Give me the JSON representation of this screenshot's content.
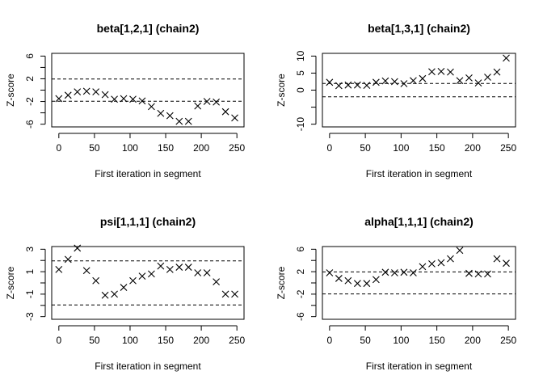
{
  "chart_data": [
    {
      "type": "scatter",
      "title": "beta[1,2,1] (chain2)",
      "xlabel": "First iteration in segment",
      "ylabel": "Z-score",
      "xlim": [
        0,
        250
      ],
      "ylim": [
        -6,
        6
      ],
      "xticks": [
        0,
        50,
        100,
        150,
        200,
        250
      ],
      "yticks": [
        -6,
        -2,
        2,
        6
      ],
      "yminor": [
        -4,
        0,
        4
      ],
      "ref_lines": [
        -1.96,
        1.96
      ],
      "x": [
        0,
        13,
        26,
        39,
        52,
        65,
        78,
        91,
        104,
        117,
        130,
        143,
        156,
        169,
        182,
        195,
        208,
        221,
        234,
        247
      ],
      "y": [
        -1.5,
        -0.9,
        -0.3,
        -0.2,
        -0.3,
        -0.8,
        -1.6,
        -1.5,
        -1.6,
        -1.9,
        -2.9,
        -4.1,
        -4.5,
        -5.5,
        -5.5,
        -2.8,
        -2.0,
        -2.1,
        -3.8,
        -4.9
      ]
    },
    {
      "type": "scatter",
      "title": "beta[1,3,1] (chain2)",
      "xlabel": "First iteration in segment",
      "ylabel": "Z-score",
      "xlim": [
        0,
        250
      ],
      "ylim": [
        -10,
        10
      ],
      "xticks": [
        0,
        50,
        100,
        150,
        200,
        250
      ],
      "yticks": [
        -10,
        -5,
        0,
        5,
        10
      ],
      "yticklabels": [
        "-10",
        "",
        "0",
        "5",
        "10"
      ],
      "ref_lines": [
        -1.96,
        1.96
      ],
      "x": [
        0,
        13,
        26,
        39,
        52,
        65,
        78,
        91,
        104,
        117,
        130,
        143,
        156,
        169,
        182,
        195,
        208,
        221,
        234,
        247
      ],
      "y": [
        2.3,
        1.3,
        1.5,
        1.5,
        1.4,
        2.3,
        2.7,
        2.5,
        1.9,
        2.8,
        3.4,
        5.4,
        5.5,
        5.3,
        2.8,
        3.6,
        2.1,
        3.8,
        5.3,
        9.4
      ]
    },
    {
      "type": "scatter",
      "title": "psi[1,1,1] (chain2)",
      "xlabel": "First iteration in segment",
      "ylabel": "Z-score",
      "xlim": [
        0,
        250
      ],
      "ylim": [
        -3,
        3
      ],
      "xticks": [
        0,
        50,
        100,
        150,
        200,
        250
      ],
      "yticks": [
        -3,
        -1,
        1,
        3
      ],
      "yminor": [
        -2,
        0,
        2
      ],
      "ref_lines": [
        -1.96,
        1.96
      ],
      "x": [
        0,
        13,
        26,
        39,
        52,
        65,
        78,
        91,
        104,
        117,
        130,
        143,
        156,
        169,
        182,
        195,
        208,
        221,
        234,
        247
      ],
      "y": [
        1.2,
        2.1,
        3.1,
        1.1,
        0.2,
        -1.1,
        -1.0,
        -0.4,
        0.2,
        0.6,
        0.8,
        1.5,
        1.2,
        1.4,
        1.4,
        0.9,
        0.9,
        0.1,
        -1.0,
        -1.0
      ]
    },
    {
      "type": "scatter",
      "title": "alpha[1,1,1] (chain2)",
      "xlabel": "First iteration in segment",
      "ylabel": "Z-score",
      "xlim": [
        0,
        250
      ],
      "ylim": [
        -6,
        6
      ],
      "xticks": [
        0,
        50,
        100,
        150,
        200,
        250
      ],
      "yticks": [
        -6,
        -2,
        2,
        6
      ],
      "yminor": [
        -4,
        0,
        4
      ],
      "ref_lines": [
        -1.96,
        1.96
      ],
      "x": [
        0,
        13,
        26,
        39,
        52,
        65,
        78,
        91,
        104,
        117,
        130,
        143,
        156,
        169,
        182,
        195,
        208,
        221,
        234,
        247
      ],
      "y": [
        1.8,
        0.8,
        0.4,
        -0.1,
        -0.1,
        0.6,
        1.9,
        1.8,
        1.9,
        1.8,
        2.9,
        3.4,
        3.6,
        4.3,
        5.8,
        1.7,
        1.6,
        1.6,
        4.3,
        3.5
      ]
    }
  ]
}
